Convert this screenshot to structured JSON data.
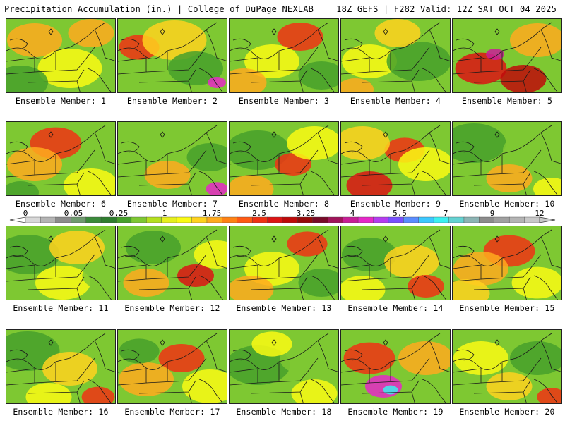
{
  "header": {
    "title": "Precipitation Accumulation (in.) | College of DuPage NEXLAB",
    "run_info": "18Z GEFS | F282 Valid: 12Z SAT OCT 04 2025"
  },
  "panels": [
    {
      "label": "Ensemble Member: 1"
    },
    {
      "label": "Ensemble Member: 2"
    },
    {
      "label": "Ensemble Member: 3"
    },
    {
      "label": "Ensemble Member: 4"
    },
    {
      "label": "Ensemble Member: 5"
    },
    {
      "label": "Ensemble Member: 6"
    },
    {
      "label": "Ensemble Member: 7"
    },
    {
      "label": "Ensemble Member: 8"
    },
    {
      "label": "Ensemble Member: 9"
    },
    {
      "label": "Ensemble Member: 10"
    },
    {
      "label": "Ensemble Member: 11"
    },
    {
      "label": "Ensemble Member: 12"
    },
    {
      "label": "Ensemble Member: 13"
    },
    {
      "label": "Ensemble Member: 14"
    },
    {
      "label": "Ensemble Member: 15"
    },
    {
      "label": "Ensemble Member: 16"
    },
    {
      "label": "Ensemble Member: 17"
    },
    {
      "label": "Ensemble Member: 18"
    },
    {
      "label": "Ensemble Member: 19"
    },
    {
      "label": "Ensemble Member: 20"
    }
  ],
  "color_scale": {
    "tick_labels": [
      "0",
      "0.05",
      "0.25",
      "1",
      "1.75",
      "2.5",
      "3.25",
      "4",
      "5.5",
      "7",
      "9",
      "12"
    ],
    "colors": [
      "#d8d8d8",
      "#b4b4b4",
      "#8c8c8c",
      "#6e9a6e",
      "#3a8a3a",
      "#2f7d2f",
      "#46a02c",
      "#7ec832",
      "#b4e01e",
      "#e6f01e",
      "#fafa14",
      "#ffd21e",
      "#ffaa1e",
      "#ff8214",
      "#ff5a14",
      "#f03214",
      "#dc1414",
      "#be0a0a",
      "#960a0a",
      "#780a28",
      "#a0145a",
      "#c81e96",
      "#e628c8",
      "#b43cf0",
      "#7850ff",
      "#5a8cff",
      "#3cc8ff",
      "#3cf0f0",
      "#64d2d2",
      "#8cb4b4",
      "#8c8c8c",
      "#a0a0a0",
      "#b4b4b4",
      "#c8c8c8"
    ]
  }
}
